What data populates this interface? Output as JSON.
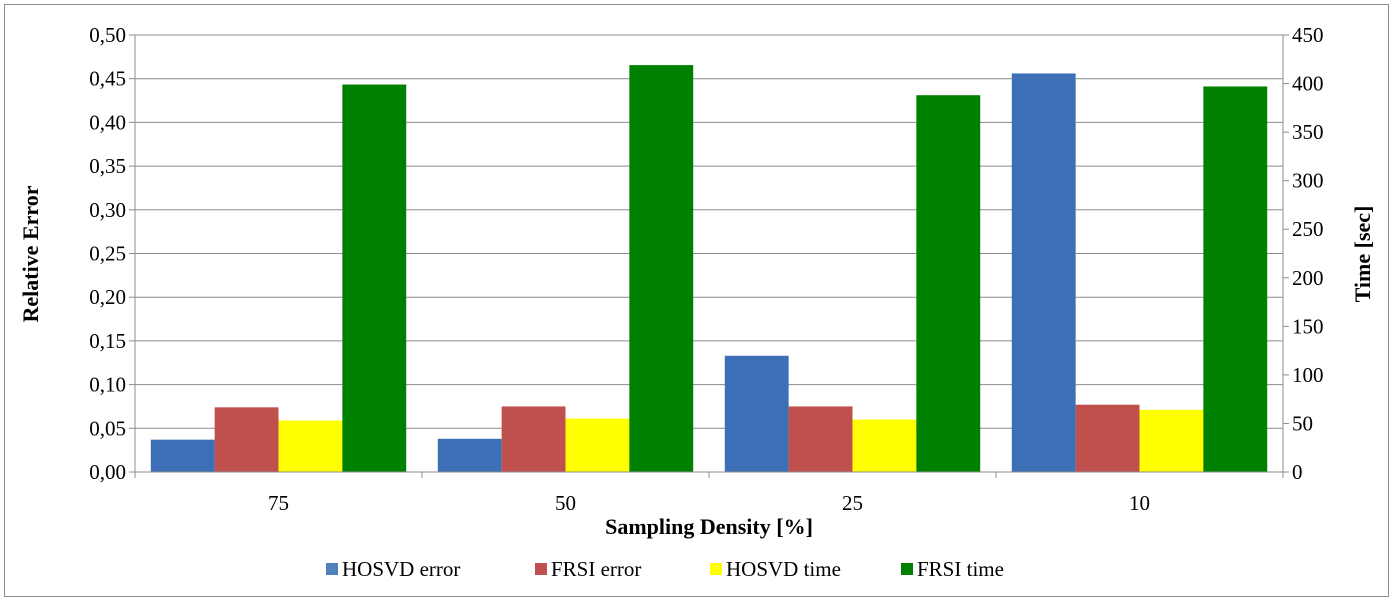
{
  "chart_data": {
    "type": "bar",
    "categories": [
      "75",
      "50",
      "25",
      "10"
    ],
    "xlabel": "Sampling Density [%]",
    "ylabel": "Relative Error",
    "y2label": "Time [sec]",
    "ylim": [
      0,
      0.5
    ],
    "y2lim": [
      0,
      450
    ],
    "yticks": [
      "0,00",
      "0,05",
      "0,10",
      "0,15",
      "0,20",
      "0,25",
      "0,30",
      "0,35",
      "0,40",
      "0,45",
      "0,50"
    ],
    "y2ticks": [
      "0",
      "50",
      "100",
      "150",
      "200",
      "250",
      "300",
      "350",
      "400",
      "450"
    ],
    "grid": true,
    "legend_position": "bottom",
    "series": [
      {
        "name": "HOSVD error",
        "axis": "left",
        "values": [
          0.037,
          0.038,
          0.133,
          0.456
        ],
        "color": "#4f81bd"
      },
      {
        "name": "FRSI error",
        "axis": "left",
        "values": [
          0.074,
          0.075,
          0.075,
          0.077
        ],
        "color": "#c0504d"
      },
      {
        "name": "HOSVD time",
        "axis": "right",
        "values": [
          53,
          55,
          54,
          64
        ],
        "color": "#ffff00"
      },
      {
        "name": "FRSI time",
        "axis": "right",
        "values": [
          399,
          419,
          388,
          397
        ],
        "color": "#008000"
      }
    ]
  }
}
